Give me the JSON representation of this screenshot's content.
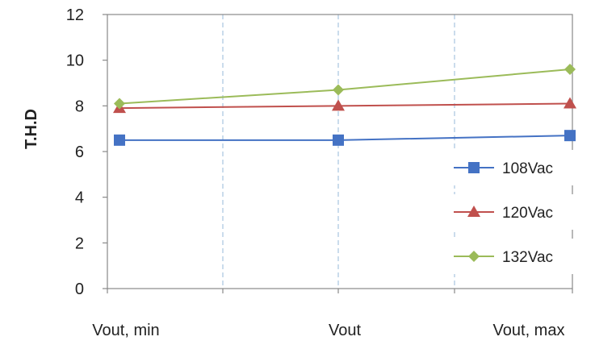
{
  "chart_data": {
    "type": "line",
    "title": "",
    "xlabel": "",
    "ylabel": "T.H.D",
    "categories": [
      "Vout, min",
      "Vout",
      "Vout, max"
    ],
    "ylim": [
      0,
      12
    ],
    "yticks": [
      "0",
      "2",
      "4",
      "6",
      "8",
      "10",
      "12"
    ],
    "grid": "vertical dashed",
    "legend_position": "right",
    "series": [
      {
        "name": "108Vac",
        "values": [
          6.5,
          6.5,
          6.7
        ],
        "color": "#4472C4",
        "marker": "square"
      },
      {
        "name": "120Vac",
        "values": [
          7.9,
          8.0,
          8.1
        ],
        "color": "#C0504D",
        "marker": "triangle"
      },
      {
        "name": "132Vac",
        "values": [
          8.1,
          8.7,
          9.6
        ],
        "color": "#9BBB59",
        "marker": "diamond"
      }
    ]
  }
}
